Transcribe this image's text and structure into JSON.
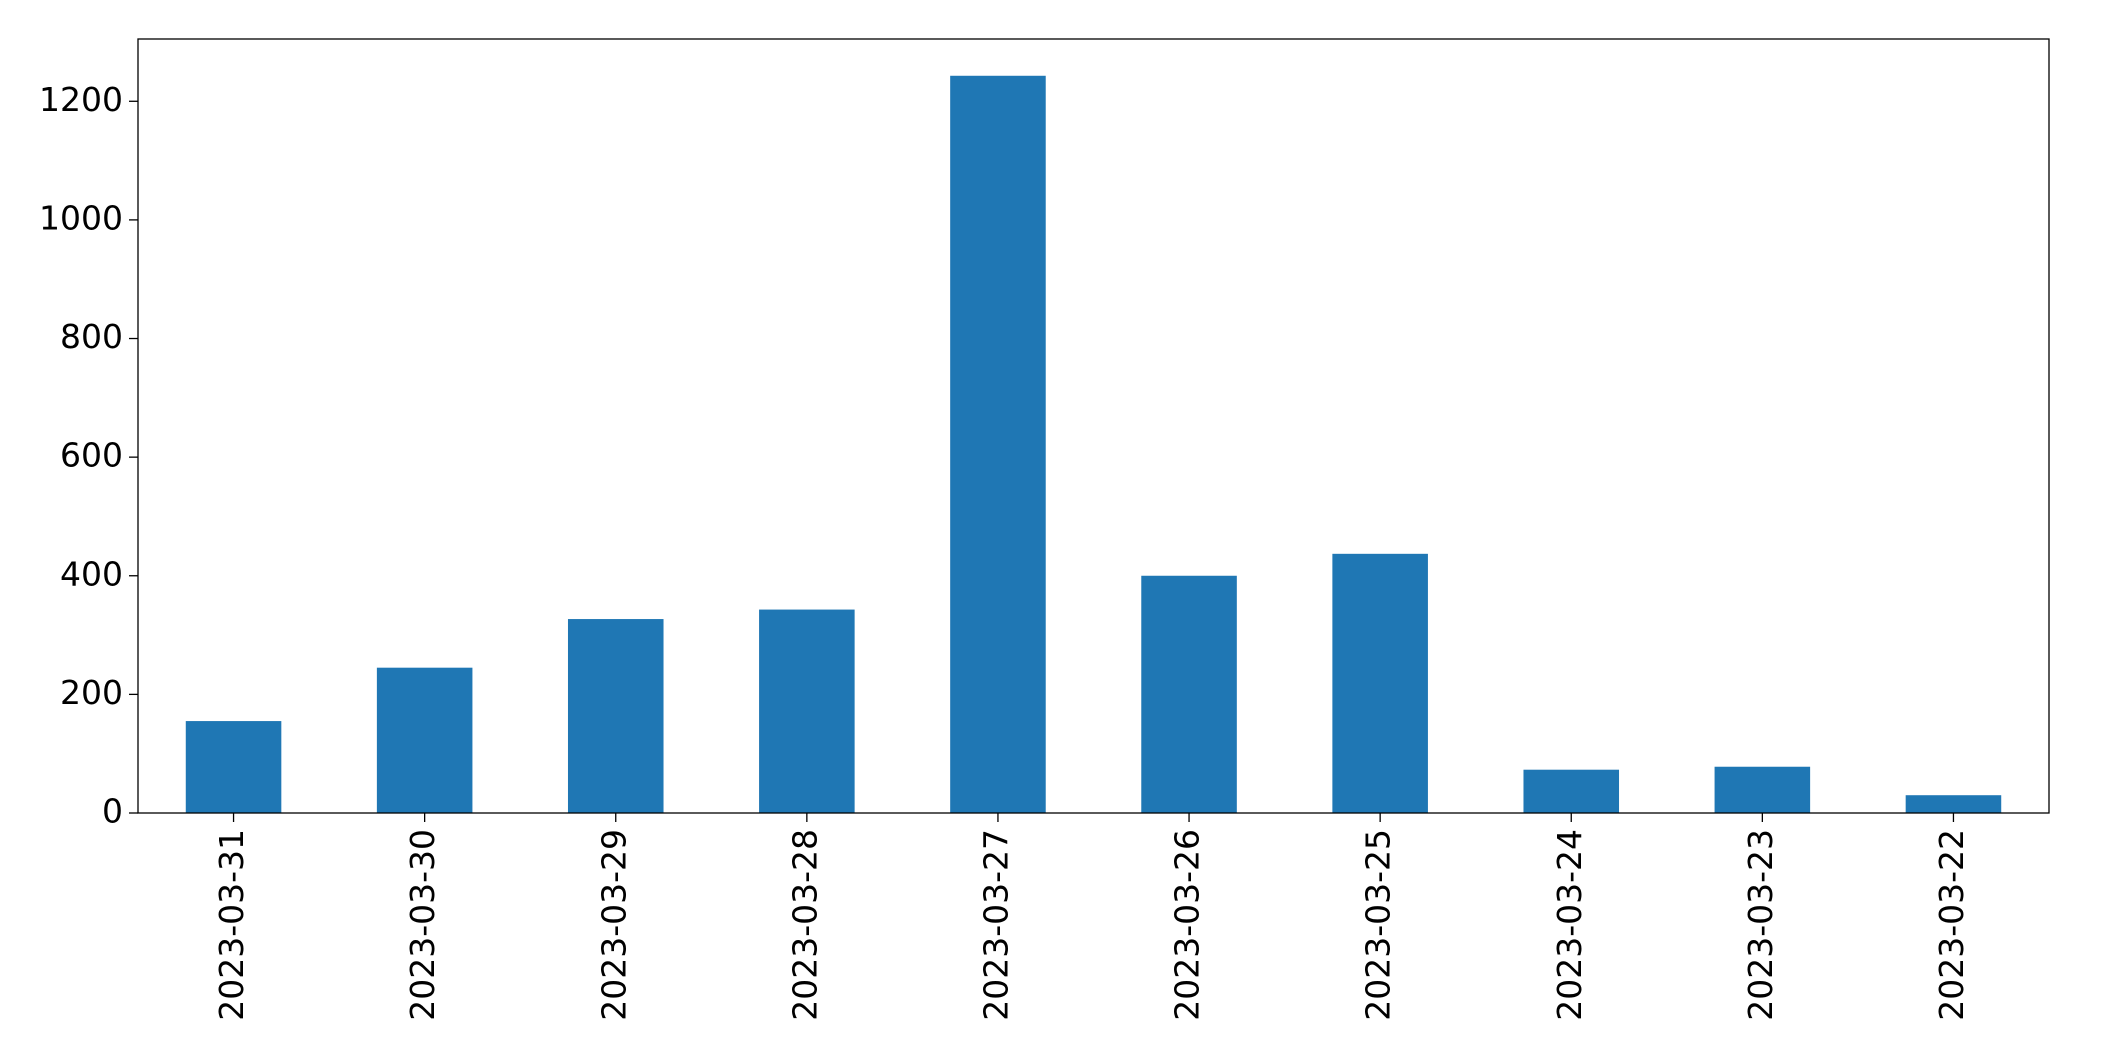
{
  "chart_data": {
    "type": "bar",
    "categories": [
      "2023-03-31",
      "2023-03-30",
      "2023-03-29",
      "2023-03-28",
      "2023-03-27",
      "2023-03-26",
      "2023-03-25",
      "2023-03-24",
      "2023-03-23",
      "2023-03-22"
    ],
    "values": [
      155,
      245,
      327,
      343,
      1243,
      400,
      437,
      73,
      78,
      30
    ],
    "color": "#1f77b4",
    "ylim": [
      0,
      1305
    ],
    "yticks": [
      0,
      200,
      400,
      600,
      800,
      1000,
      1200
    ],
    "grid": false
  }
}
